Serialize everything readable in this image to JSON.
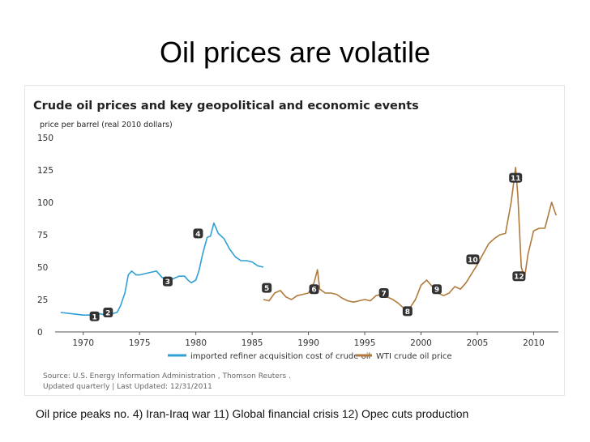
{
  "slide": {
    "title": "Oil prices are volatile",
    "caption": "Oil price peaks no. 4) Iran-Iraq war 11) Global financial crisis 12) Opec cuts production"
  },
  "chart_data": {
    "type": "line",
    "title": "Crude oil prices and key geopolitical and economic events",
    "subtitle": "price per barrel (real 2010 dollars)",
    "xlabel": "",
    "ylabel": "",
    "xlim": [
      1967.5,
      2012.2
    ],
    "ylim": [
      0,
      150
    ],
    "x_ticks": [
      "1970",
      "1975",
      "1980",
      "1985",
      "1990",
      "1995",
      "2000",
      "2005",
      "2010"
    ],
    "y_ticks": [
      "0",
      "25",
      "50",
      "75",
      "100",
      "125",
      "150"
    ],
    "grid": false,
    "legend_position": "bottom",
    "source": "Source:  U.S. Energy Information Administration ,  Thomson Reuters .",
    "updated": "Updated  quarterly | Last Updated: 12/31/2011",
    "colors": {
      "series1": "#2ea0d6",
      "series2": "#b07a3c",
      "axis": "#555555",
      "marker_fill": "#333333"
    },
    "series": [
      {
        "name": "imported refiner acquisition cost of crude oil",
        "x": [
          1968.0,
          1969.0,
          1970.0,
          1970.5,
          1971.0,
          1971.5,
          1972.0,
          1972.5,
          1973.0,
          1973.3,
          1973.7,
          1974.0,
          1974.3,
          1974.7,
          1975.0,
          1975.5,
          1976.0,
          1976.5,
          1977.0,
          1977.5,
          1978.0,
          1978.5,
          1979.0,
          1979.3,
          1979.6,
          1980.0,
          1980.3,
          1980.6,
          1981.0,
          1981.3,
          1981.6,
          1982.0,
          1982.5,
          1983.0,
          1983.5,
          1984.0,
          1984.5,
          1985.0,
          1985.5,
          1986.0
        ],
        "values": [
          15,
          14,
          13,
          13,
          14,
          14,
          13,
          14,
          15,
          20,
          30,
          44,
          47,
          44,
          44,
          45,
          46,
          47,
          42,
          41,
          41,
          43,
          43,
          40,
          38,
          40,
          48,
          60,
          73,
          74,
          84,
          76,
          72,
          64,
          58,
          55,
          55,
          54,
          51,
          50
        ]
      },
      {
        "name": "WTI crude oil price",
        "x": [
          1986.0,
          1986.5,
          1987.0,
          1987.5,
          1988.0,
          1988.5,
          1989.0,
          1989.5,
          1990.0,
          1990.5,
          1990.8,
          1991.0,
          1991.5,
          1992.0,
          1992.5,
          1993.0,
          1993.5,
          1994.0,
          1994.5,
          1995.0,
          1995.5,
          1996.0,
          1996.5,
          1997.0,
          1997.5,
          1998.0,
          1998.5,
          1998.9,
          1999.5,
          2000.0,
          2000.5,
          2001.0,
          2001.5,
          2002.0,
          2002.5,
          2003.0,
          2003.5,
          2004.0,
          2004.5,
          2005.0,
          2005.5,
          2006.0,
          2006.5,
          2007.0,
          2007.5,
          2008.0,
          2008.4,
          2008.6,
          2008.9,
          2009.2,
          2009.5,
          2010.0,
          2010.5,
          2011.0,
          2011.3,
          2011.6,
          2012.0
        ],
        "values": [
          25,
          24,
          30,
          32,
          27,
          25,
          28,
          29,
          30,
          38,
          48,
          33,
          30,
          30,
          29,
          26,
          24,
          23,
          24,
          25,
          24,
          28,
          29,
          27,
          25,
          22,
          18,
          17,
          25,
          36,
          40,
          35,
          30,
          28,
          30,
          35,
          33,
          38,
          45,
          52,
          60,
          68,
          72,
          75,
          76,
          100,
          127,
          105,
          50,
          42,
          60,
          78,
          80,
          80,
          90,
          100,
          90
        ]
      }
    ],
    "annotations": [
      {
        "label": "1",
        "x": 1971.0,
        "y": 12
      },
      {
        "label": "2",
        "x": 1972.2,
        "y": 15
      },
      {
        "label": "3",
        "x": 1977.5,
        "y": 39
      },
      {
        "label": "4",
        "x": 1980.2,
        "y": 76
      },
      {
        "label": "5",
        "x": 1986.3,
        "y": 34
      },
      {
        "label": "6",
        "x": 1990.5,
        "y": 33
      },
      {
        "label": "7",
        "x": 1996.7,
        "y": 30
      },
      {
        "label": "8",
        "x": 1998.8,
        "y": 16
      },
      {
        "label": "9",
        "x": 2001.4,
        "y": 33
      },
      {
        "label": "10",
        "x": 2004.6,
        "y": 56
      },
      {
        "label": "11",
        "x": 2008.4,
        "y": 119
      },
      {
        "label": "12",
        "x": 2008.7,
        "y": 43
      }
    ]
  }
}
